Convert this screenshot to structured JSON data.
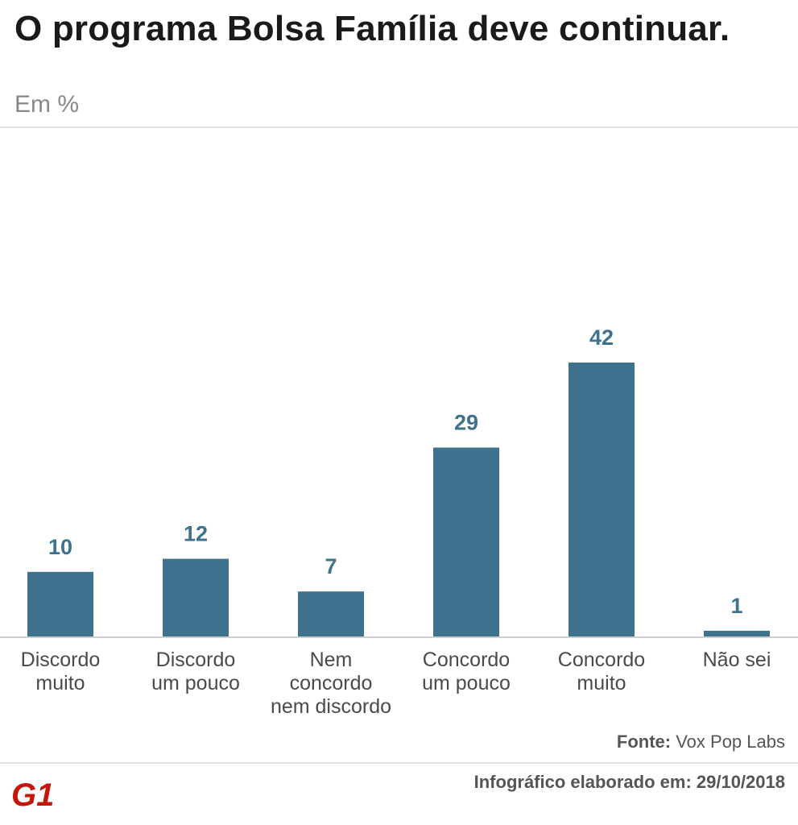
{
  "header": {
    "title": "O programa Bolsa Família deve continuar.",
    "subtitle": "Em %"
  },
  "chart_data": {
    "type": "bar",
    "title": "O programa Bolsa Família deve continuar.",
    "subtitle": "Em %",
    "categories": [
      [
        "Discordo",
        "muito"
      ],
      [
        "Discordo",
        "um pouco"
      ],
      [
        "Nem",
        "concordo",
        "nem discordo"
      ],
      [
        "Concordo",
        "um pouco"
      ],
      [
        "Concordo",
        "muito"
      ],
      [
        "Não sei"
      ]
    ],
    "values": [
      10,
      12,
      7,
      29,
      42,
      1
    ],
    "ylim": [
      0,
      42
    ],
    "grid": false,
    "colors": {
      "bar": "#3f728f"
    }
  },
  "footer": {
    "source_label": "Fonte:",
    "source_value": "Vox Pop Labs",
    "date_text": "Infográfico elaborado em: 29/10/2018",
    "logo_text": "G1",
    "logo_color": "#c4170c"
  }
}
